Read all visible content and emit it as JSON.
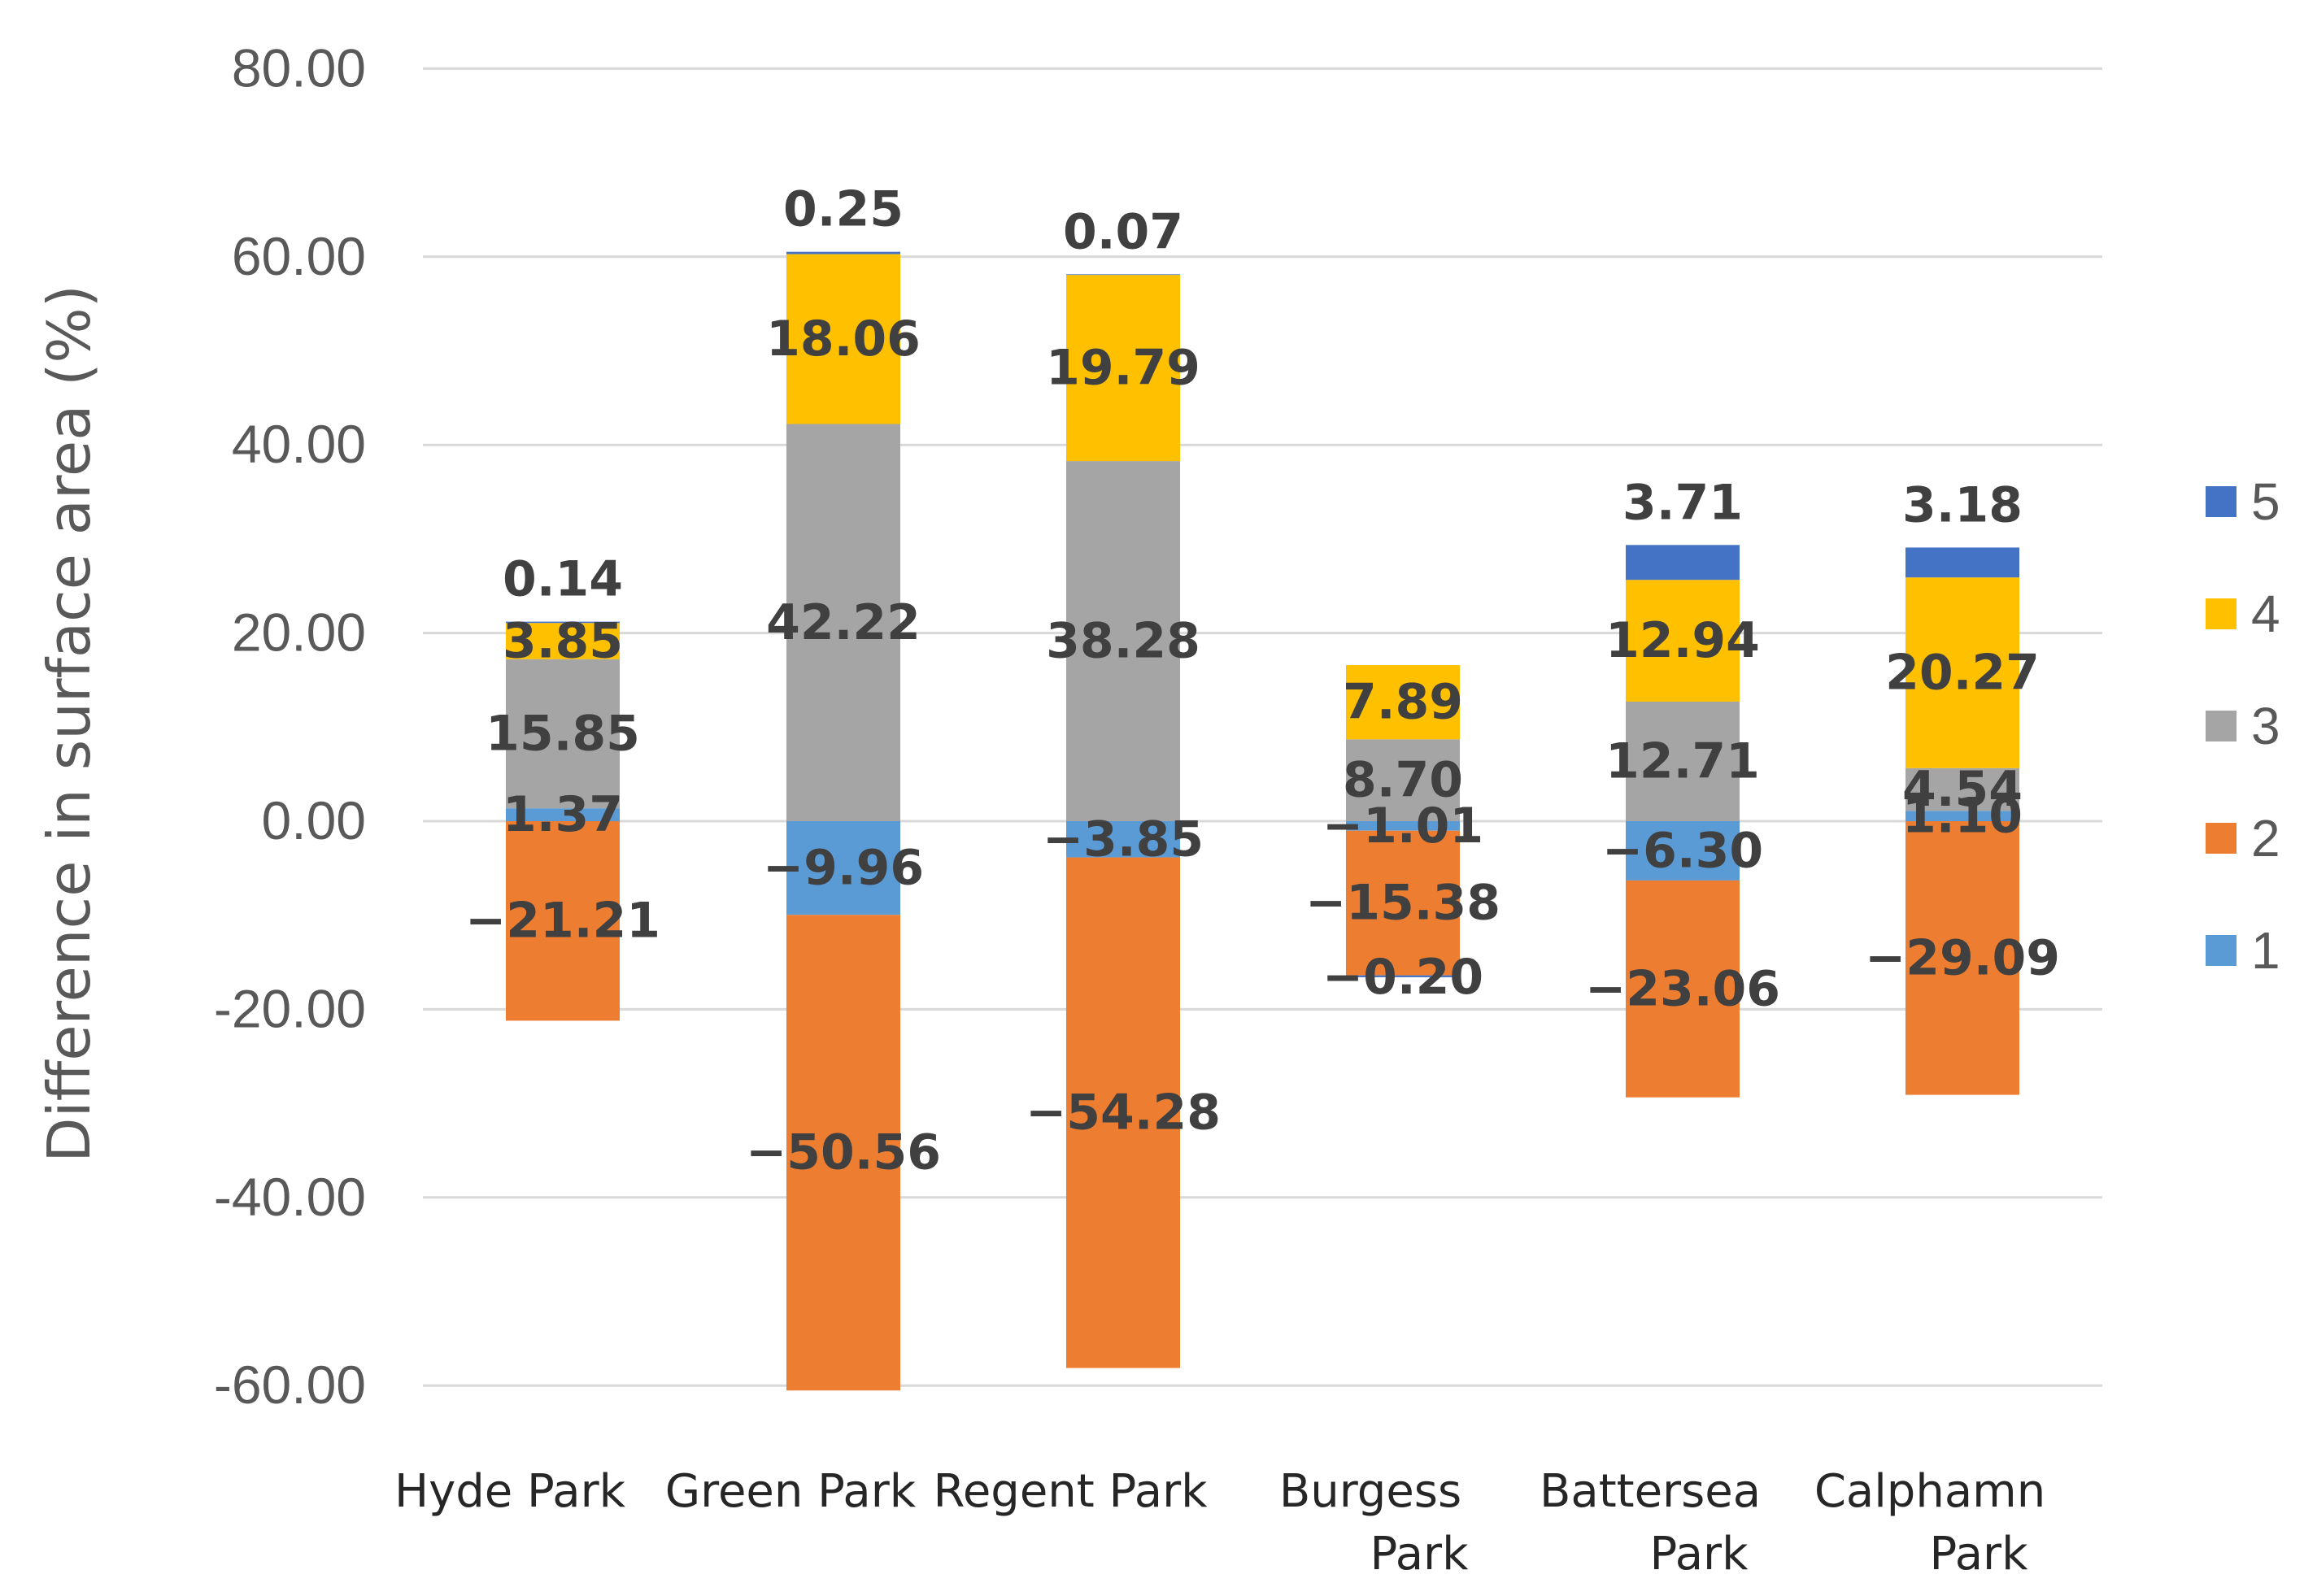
{
  "chart_data": {
    "type": "bar",
    "stacked": true,
    "title": "",
    "xlabel": "",
    "ylabel": "Difference in surface area (%)",
    "ylim": [
      -60,
      80
    ],
    "yticks": [
      80,
      60,
      40,
      20,
      0,
      -20,
      -40,
      -60
    ],
    "ytick_labels": [
      "80.00",
      "60.00",
      "40.00",
      "20.00",
      "0.00",
      "-20.00",
      "-40.00",
      "-60.00"
    ],
    "grid": true,
    "legend_position": "right",
    "categories": [
      [
        "Hyde Park"
      ],
      [
        "Green Park"
      ],
      [
        "Regent Park"
      ],
      [
        "Burgess",
        "Park"
      ],
      [
        "Battersea",
        "Park"
      ],
      [
        "Calphamn",
        "Park"
      ]
    ],
    "series": [
      {
        "name": "1",
        "color": "#5B9BD5",
        "values": [
          1.37,
          -9.96,
          -3.85,
          -1.01,
          -6.3,
          1.1
        ],
        "labels": [
          "1.37",
          "−9.96",
          "−3.85",
          "−1.01",
          "−6.30",
          "1.10"
        ]
      },
      {
        "name": "2",
        "color": "#ED7D31",
        "values": [
          -21.21,
          -50.56,
          -54.28,
          -15.38,
          -23.06,
          -29.09
        ],
        "labels": [
          "−21.21",
          "−50.56",
          "−54.28",
          "−15.38",
          "−23.06",
          "−29.09"
        ]
      },
      {
        "name": "3",
        "color": "#A5A5A5",
        "values": [
          15.85,
          42.22,
          38.28,
          8.7,
          12.71,
          4.54
        ],
        "labels": [
          "15.85",
          "42.22",
          "38.28",
          "8.70",
          "12.71",
          "4.54"
        ]
      },
      {
        "name": "4",
        "color": "#FFC000",
        "values": [
          3.85,
          18.06,
          19.79,
          7.89,
          12.94,
          20.27
        ],
        "labels": [
          "3.85",
          "18.06",
          "19.79",
          "7.89",
          "12.94",
          "20.27"
        ]
      },
      {
        "name": "5",
        "color": "#4472C4",
        "values": [
          0.14,
          0.25,
          0.07,
          -0.2,
          3.71,
          3.18
        ],
        "labels": [
          "0.14",
          "0.25",
          "0.07",
          "−0.20",
          "3.71",
          "3.18"
        ]
      }
    ],
    "legend_order": [
      "5",
      "4",
      "3",
      "2",
      "1"
    ]
  }
}
